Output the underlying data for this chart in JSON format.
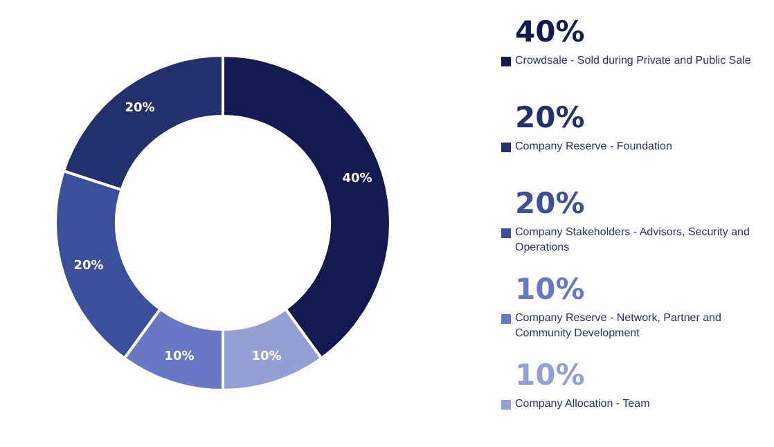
{
  "chart_data": {
    "type": "donut",
    "categories": [
      "Crowdsale - Sold during Private and Public Sale",
      "Company Reserve - Foundation",
      "Company Stakeholders - Advisors, Security and Operations",
      "Company Reserve - Network, Partner and Community Development",
      "Company Allocation - Team"
    ],
    "values": [
      40,
      20,
      20,
      10,
      10
    ],
    "value_labels": [
      "40%",
      "20%",
      "20%",
      "10%",
      "10%"
    ],
    "colors": [
      "#141a4f",
      "#22306e",
      "#3b4f9a",
      "#6878c4",
      "#949fd6"
    ],
    "legend": "right"
  }
}
